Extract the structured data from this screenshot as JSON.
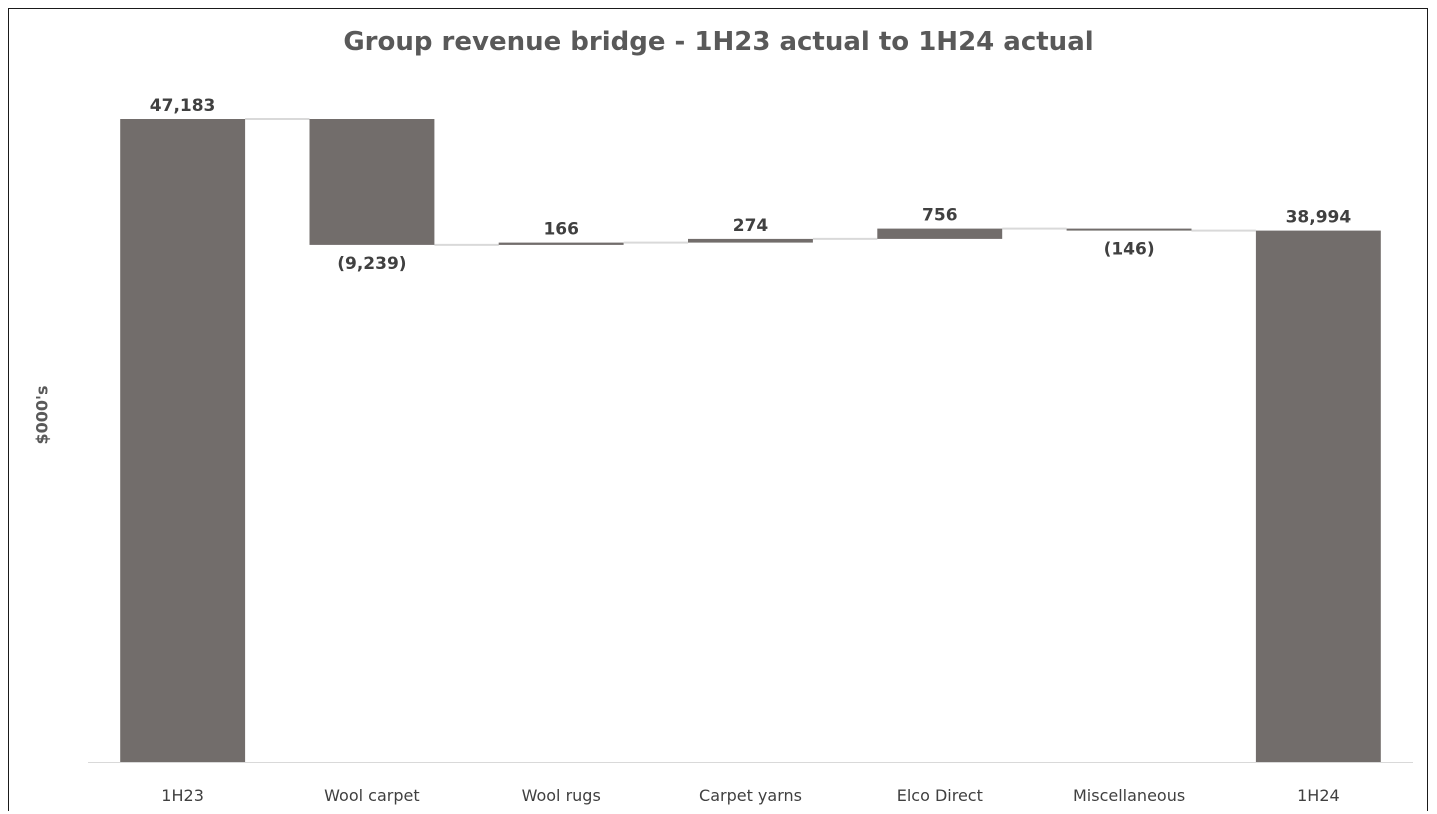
{
  "chart_data": {
    "type": "bar",
    "subtype": "waterfall",
    "title": "Group revenue bridge - 1H23 actual to 1H24 actual",
    "xlabel": "",
    "ylabel": "$000's",
    "categories": [
      "1H23",
      "Wool carpet",
      "Wool rugs",
      "Carpet yarns",
      "Elco Direct",
      "Miscellaneous",
      "1H24"
    ],
    "values": [
      47183,
      -9239,
      166,
      274,
      756,
      -146,
      38994
    ],
    "kinds": [
      "total",
      "delta",
      "delta",
      "delta",
      "delta",
      "delta",
      "total"
    ],
    "data_labels": [
      "47,183",
      "(9,239)",
      "166",
      "274",
      "756",
      "(146)",
      "38,994"
    ],
    "ylim": [
      0,
      47183
    ],
    "grid": false,
    "legend": "none",
    "colors": {
      "bar": "#726d6b",
      "connector": "#d9d9d9",
      "axis": "#d9d9d9"
    }
  }
}
